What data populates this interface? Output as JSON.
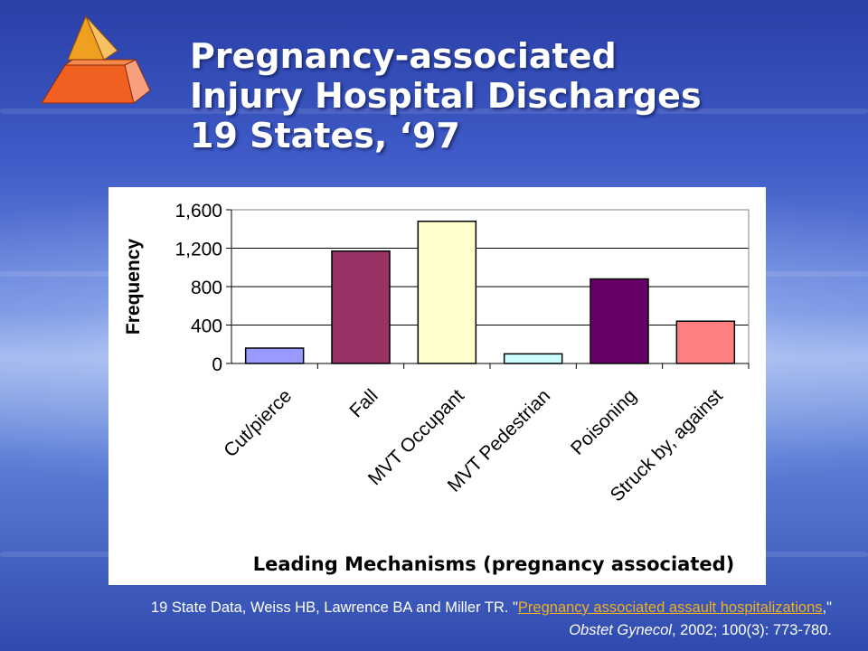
{
  "slide": {
    "title_lines": [
      "Pregnancy-associated",
      "Injury Hospital Discharges",
      "19 States, ‘97"
    ],
    "logo_icon": "pyramid-icon",
    "colors": {
      "pyramid_top": "#f0a020",
      "pyramid_bottom": "#f06020",
      "link": "#f0b020"
    }
  },
  "chart_data": {
    "type": "bar",
    "categories": [
      "Cut/pierce",
      "Fall",
      "MVT Occupant",
      "MVT Pedestrian",
      "Poisoning",
      "Struck by, against"
    ],
    "values": [
      160,
      1170,
      1480,
      100,
      880,
      440
    ],
    "colors": [
      "#9999ff",
      "#993366",
      "#ffffcc",
      "#ccffff",
      "#660066",
      "#ff8080"
    ],
    "title": "",
    "xlabel": "Leading Mechanisms (pregnancy associated)",
    "ylabel": "Frequency",
    "ylim": [
      0,
      1600
    ],
    "yticks": [
      0,
      400,
      800,
      1200,
      1600
    ],
    "ytick_labels": [
      "0",
      "400",
      "800",
      "1,200",
      "1,600"
    ],
    "grid": true,
    "legend": "none"
  },
  "citation": {
    "prefix": "19 State Data, Weiss HB, Lawrence BA and Miller TR. \"",
    "link_text": "Pregnancy associated assault hospitalizations",
    "middle": ",\" ",
    "journal": "Obstet Gynecol",
    "suffix": ", 2002; 100(3): 773-780."
  }
}
